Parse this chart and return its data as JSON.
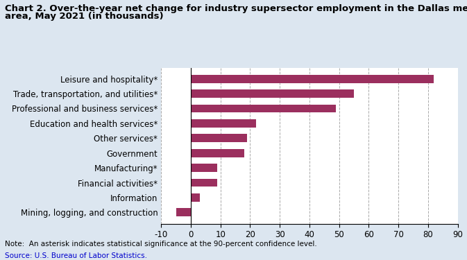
{
  "title_line1": "Chart 2. Over-the-year net change for industry supersector employment in the Dallas metropolitan",
  "title_line2": "area, May 2021 (in thousands)",
  "categories": [
    "Mining, logging, and construction",
    "Information",
    "Financial activities*",
    "Manufacturing*",
    "Government",
    "Other services*",
    "Education and health services*",
    "Professional and business services*",
    "Trade, transportation, and utilities*",
    "Leisure and hospitality*"
  ],
  "values": [
    -5,
    3,
    9,
    9,
    18,
    19,
    22,
    49,
    55,
    82
  ],
  "bar_color": "#9b2f5e",
  "xlim": [
    -10,
    90
  ],
  "xticks": [
    -10,
    0,
    10,
    20,
    30,
    40,
    50,
    60,
    70,
    80,
    90
  ],
  "note": "Note:  An asterisk indicates statistical significance at the 90-percent confidence level.",
  "source": "Source: U.S. Bureau of Labor Statistics.",
  "background_color": "#dce6f0",
  "plot_background": "#ffffff",
  "title_fontsize": 9.5,
  "label_fontsize": 8.5,
  "tick_fontsize": 8.5,
  "note_fontsize": 7.5,
  "source_color": "#0000cc"
}
